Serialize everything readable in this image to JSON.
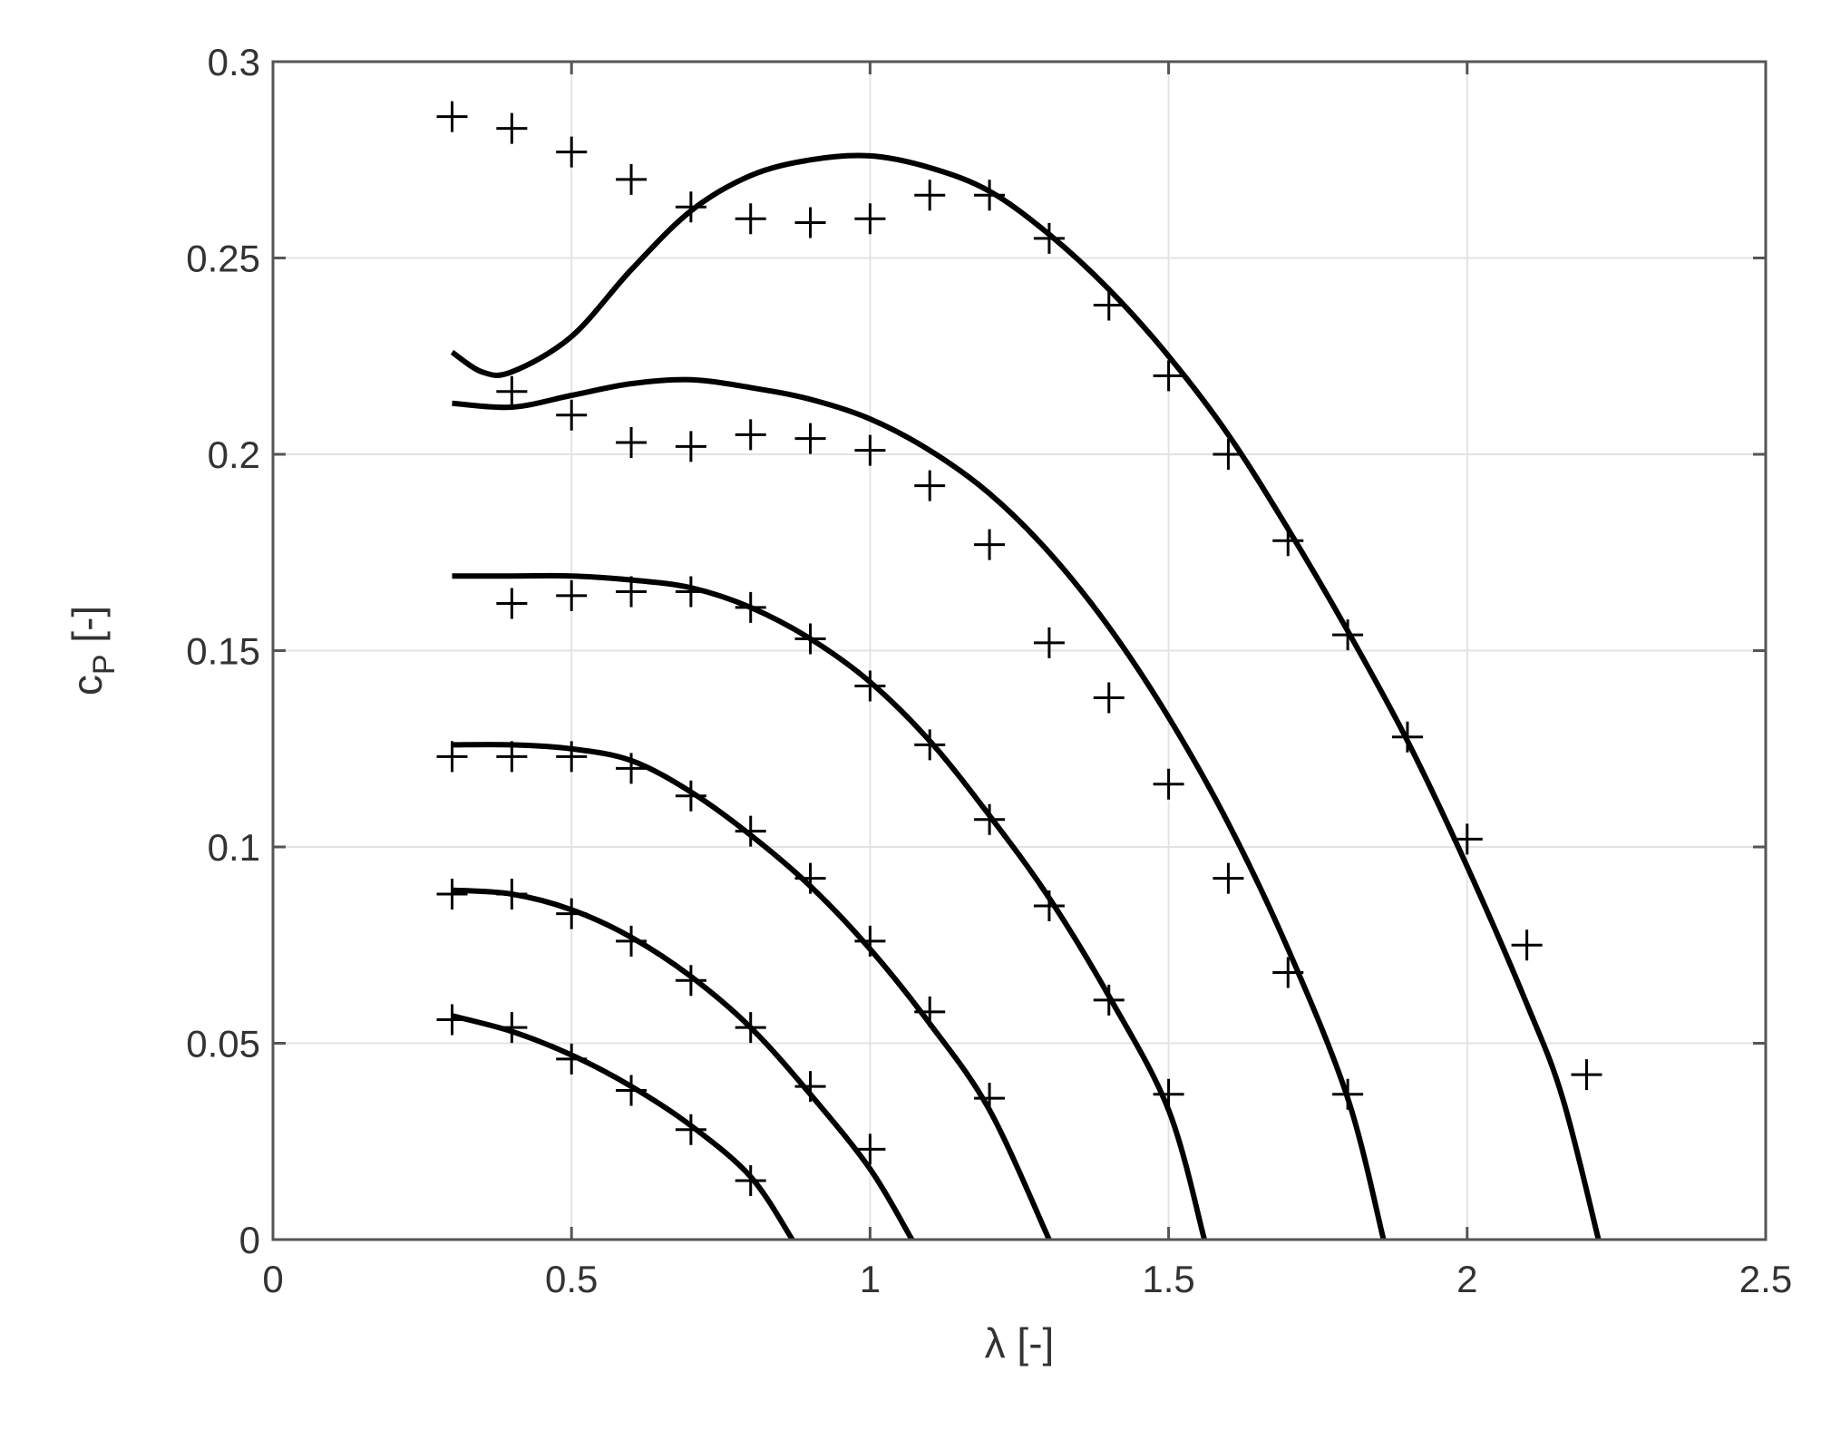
{
  "chart_data": {
    "type": "line",
    "xlabel": "λ [-]",
    "ylabel": "c",
    "ylabel_subscript": "P",
    "ylabel_suffix": " [-]",
    "xlim": [
      0,
      2.5
    ],
    "ylim": [
      0,
      0.3
    ],
    "xticks": [
      0,
      0.5,
      1,
      1.5,
      2,
      2.5
    ],
    "xtick_labels": [
      "0",
      "0.5",
      "1",
      "1.5",
      "2",
      "2.5"
    ],
    "yticks": [
      0,
      0.05,
      0.1,
      0.15,
      0.2,
      0.25,
      0.3
    ],
    "ytick_labels": [
      "0",
      "0.05",
      "0.1",
      "0.15",
      "0.2",
      "0.25",
      "0.3"
    ],
    "grid": true,
    "legend": "none",
    "colors": {
      "line": "#000000",
      "grid": "#e3e3e3",
      "axis": "#555555",
      "text": "#333333"
    },
    "series": [
      {
        "style": "line",
        "points": [
          [
            0.3,
            0.057
          ],
          [
            0.4,
            0.053
          ],
          [
            0.5,
            0.047
          ],
          [
            0.6,
            0.039
          ],
          [
            0.7,
            0.029
          ],
          [
            0.8,
            0.016
          ],
          [
            0.87,
            0.0
          ]
        ]
      },
      {
        "style": "line",
        "points": [
          [
            0.3,
            0.089
          ],
          [
            0.4,
            0.088
          ],
          [
            0.5,
            0.084
          ],
          [
            0.6,
            0.077
          ],
          [
            0.7,
            0.067
          ],
          [
            0.8,
            0.054
          ],
          [
            0.9,
            0.037
          ],
          [
            1.0,
            0.018
          ],
          [
            1.07,
            0.0
          ]
        ]
      },
      {
        "style": "line",
        "points": [
          [
            0.3,
            0.126
          ],
          [
            0.4,
            0.126
          ],
          [
            0.5,
            0.125
          ],
          [
            0.6,
            0.122
          ],
          [
            0.7,
            0.114
          ],
          [
            0.8,
            0.103
          ],
          [
            0.9,
            0.09
          ],
          [
            1.0,
            0.074
          ],
          [
            1.1,
            0.055
          ],
          [
            1.2,
            0.033
          ],
          [
            1.3,
            0.0
          ]
        ]
      },
      {
        "style": "line",
        "points": [
          [
            0.3,
            0.169
          ],
          [
            0.4,
            0.169
          ],
          [
            0.5,
            0.169
          ],
          [
            0.6,
            0.168
          ],
          [
            0.7,
            0.166
          ],
          [
            0.8,
            0.161
          ],
          [
            0.9,
            0.153
          ],
          [
            1.0,
            0.142
          ],
          [
            1.1,
            0.127
          ],
          [
            1.2,
            0.108
          ],
          [
            1.3,
            0.087
          ],
          [
            1.4,
            0.062
          ],
          [
            1.5,
            0.033
          ],
          [
            1.56,
            0.0
          ]
        ]
      },
      {
        "style": "line",
        "points": [
          [
            0.3,
            0.213
          ],
          [
            0.4,
            0.212
          ],
          [
            0.5,
            0.215
          ],
          [
            0.6,
            0.218
          ],
          [
            0.7,
            0.219
          ],
          [
            0.8,
            0.217
          ],
          [
            0.9,
            0.214
          ],
          [
            1.0,
            0.209
          ],
          [
            1.1,
            0.201
          ],
          [
            1.2,
            0.19
          ],
          [
            1.3,
            0.175
          ],
          [
            1.4,
            0.156
          ],
          [
            1.5,
            0.133
          ],
          [
            1.6,
            0.106
          ],
          [
            1.7,
            0.074
          ],
          [
            1.8,
            0.036
          ],
          [
            1.86,
            0.0
          ]
        ]
      },
      {
        "style": "line",
        "points": [
          [
            0.3,
            0.226
          ],
          [
            0.35,
            0.221
          ],
          [
            0.4,
            0.221
          ],
          [
            0.5,
            0.23
          ],
          [
            0.6,
            0.247
          ],
          [
            0.7,
            0.262
          ],
          [
            0.8,
            0.271
          ],
          [
            0.9,
            0.275
          ],
          [
            1.0,
            0.276
          ],
          [
            1.1,
            0.273
          ],
          [
            1.2,
            0.267
          ],
          [
            1.3,
            0.256
          ],
          [
            1.4,
            0.242
          ],
          [
            1.5,
            0.225
          ],
          [
            1.6,
            0.205
          ],
          [
            1.7,
            0.181
          ],
          [
            1.8,
            0.155
          ],
          [
            1.9,
            0.127
          ],
          [
            2.0,
            0.095
          ],
          [
            2.1,
            0.06
          ],
          [
            2.16,
            0.036
          ],
          [
            2.22,
            0.0
          ]
        ]
      },
      {
        "style": "marker",
        "points": [
          [
            0.3,
            0.056
          ],
          [
            0.4,
            0.054
          ],
          [
            0.5,
            0.046
          ],
          [
            0.6,
            0.038
          ],
          [
            0.7,
            0.028
          ],
          [
            0.8,
            0.015
          ]
        ]
      },
      {
        "style": "marker",
        "points": [
          [
            0.3,
            0.088
          ],
          [
            0.4,
            0.088
          ],
          [
            0.5,
            0.083
          ],
          [
            0.6,
            0.076
          ],
          [
            0.7,
            0.066
          ],
          [
            0.8,
            0.054
          ],
          [
            0.9,
            0.039
          ],
          [
            1.0,
            0.023
          ]
        ]
      },
      {
        "style": "marker",
        "points": [
          [
            0.3,
            0.123
          ],
          [
            0.4,
            0.123
          ],
          [
            0.5,
            0.123
          ],
          [
            0.6,
            0.12
          ],
          [
            0.7,
            0.113
          ],
          [
            0.8,
            0.104
          ],
          [
            0.9,
            0.092
          ],
          [
            1.0,
            0.076
          ],
          [
            1.1,
            0.058
          ],
          [
            1.2,
            0.036
          ]
        ]
      },
      {
        "style": "marker",
        "points": [
          [
            0.4,
            0.162
          ],
          [
            0.5,
            0.164
          ],
          [
            0.6,
            0.165
          ],
          [
            0.7,
            0.165
          ],
          [
            0.8,
            0.161
          ],
          [
            0.9,
            0.153
          ],
          [
            1.0,
            0.141
          ],
          [
            1.1,
            0.126
          ],
          [
            1.2,
            0.107
          ],
          [
            1.3,
            0.085
          ],
          [
            1.4,
            0.061
          ],
          [
            1.5,
            0.037
          ]
        ]
      },
      {
        "style": "marker",
        "points": [
          [
            0.4,
            0.216
          ],
          [
            0.5,
            0.21
          ],
          [
            0.6,
            0.203
          ],
          [
            0.7,
            0.202
          ],
          [
            0.8,
            0.205
          ],
          [
            0.9,
            0.204
          ],
          [
            1.0,
            0.201
          ],
          [
            1.1,
            0.192
          ],
          [
            1.2,
            0.177
          ],
          [
            1.3,
            0.152
          ],
          [
            1.4,
            0.138
          ],
          [
            1.5,
            0.116
          ],
          [
            1.6,
            0.092
          ],
          [
            1.7,
            0.068
          ],
          [
            1.8,
            0.037
          ]
        ]
      },
      {
        "style": "marker",
        "points": [
          [
            0.3,
            0.286
          ],
          [
            0.4,
            0.283
          ],
          [
            0.5,
            0.277
          ],
          [
            0.6,
            0.27
          ],
          [
            0.7,
            0.263
          ],
          [
            0.8,
            0.26
          ],
          [
            0.9,
            0.259
          ],
          [
            1.0,
            0.26
          ],
          [
            1.1,
            0.266
          ],
          [
            1.2,
            0.266
          ],
          [
            1.3,
            0.255
          ],
          [
            1.4,
            0.238
          ],
          [
            1.5,
            0.22
          ],
          [
            1.6,
            0.2
          ],
          [
            1.7,
            0.178
          ],
          [
            1.8,
            0.154
          ],
          [
            1.9,
            0.128
          ],
          [
            2.0,
            0.102
          ],
          [
            2.1,
            0.075
          ],
          [
            2.2,
            0.042
          ]
        ]
      }
    ]
  }
}
